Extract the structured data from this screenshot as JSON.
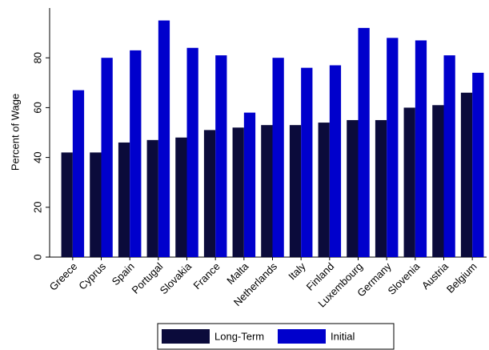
{
  "chart_data": {
    "type": "bar",
    "y_label": "Percent of Wage",
    "categories": [
      "Greece",
      "Cyprus",
      "Spain",
      "Portugal",
      "Slovakia",
      "France",
      "Malta",
      "Netherlands",
      "Italy",
      "Finland",
      "Luxembourg",
      "Germany",
      "Slovenia",
      "Austria",
      "Belgium"
    ],
    "series": [
      {
        "name": "Long-Term",
        "color": "#0b0b3b",
        "values": [
          42,
          42,
          46,
          47,
          48,
          51,
          52,
          53,
          53,
          54,
          55,
          55,
          60,
          61,
          66
        ]
      },
      {
        "name": "Initial",
        "color": "#0000cc",
        "values": [
          67,
          80,
          83,
          95,
          84,
          81,
          58,
          80,
          76,
          77,
          92,
          88,
          87,
          81,
          74
        ]
      }
    ],
    "ylim": [
      0,
      100
    ],
    "yticks": [
      0,
      20,
      40,
      60,
      80
    ],
    "grid": false,
    "legend": "bottom"
  }
}
